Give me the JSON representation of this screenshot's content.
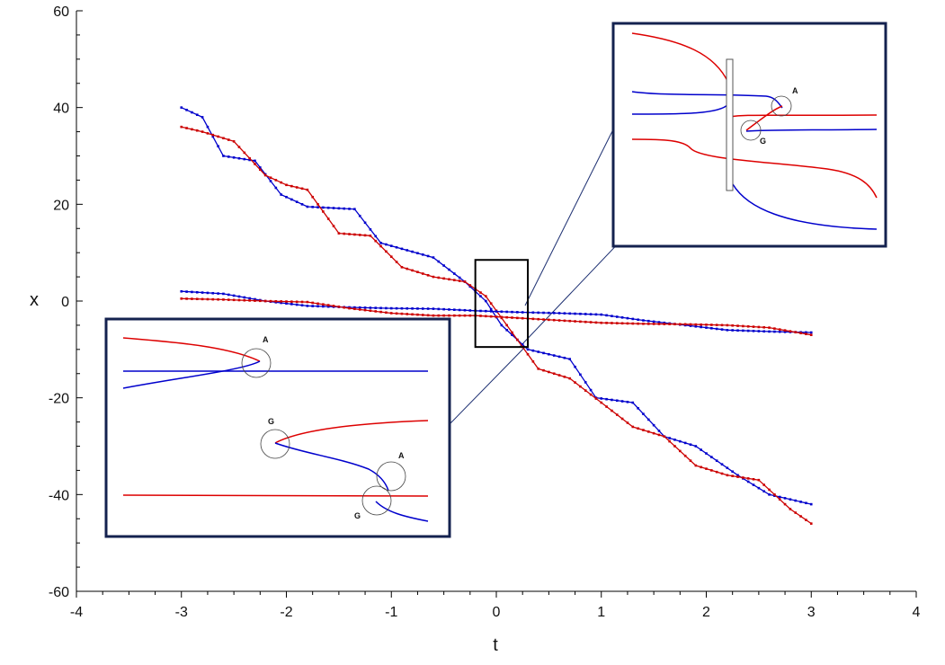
{
  "chart_data": {
    "type": "line",
    "xlabel": "t",
    "ylabel": "x",
    "xlim": [
      -4,
      4
    ],
    "ylim": [
      -60,
      60
    ],
    "xticks": [
      -4,
      -3,
      -2,
      -1,
      0,
      1,
      2,
      3,
      4
    ],
    "yticks": [
      60,
      40,
      20,
      0,
      -20,
      -40,
      -60
    ],
    "x_minor_step": 0.25,
    "y_minor_step": 5,
    "markers": true,
    "series": [
      {
        "color": "#0000cc",
        "x": [
          -3,
          -2.8,
          -2.6,
          -2.3,
          -2.05,
          -1.8,
          -1.35,
          -1.1,
          -0.6,
          -0.3,
          -0.1,
          0.05,
          0.3,
          0.7,
          0.95,
          1.3,
          1.6,
          1.9,
          2.3,
          2.6,
          3.0
        ],
        "y": [
          40,
          38,
          30,
          29,
          22,
          19.5,
          19,
          12,
          9,
          4,
          0,
          -5,
          -10,
          -12,
          -20,
          -21,
          -28,
          -30,
          -36,
          -40,
          -42
        ]
      },
      {
        "color": "#cc0000",
        "x": [
          -3,
          -2.8,
          -2.5,
          -2.2,
          -2.0,
          -1.8,
          -1.5,
          -1.2,
          -0.9,
          -0.6,
          -0.3,
          -0.1,
          0.1,
          0.4,
          0.7,
          1.0,
          1.3,
          1.6,
          1.9,
          2.2,
          2.5,
          2.8,
          3.0
        ],
        "y": [
          36,
          35,
          33,
          26,
          24,
          23,
          14,
          13.5,
          7,
          5,
          4,
          1,
          -5,
          -14,
          -16,
          -21,
          -26,
          -28,
          -34,
          -36,
          -37,
          -43,
          -46
        ]
      },
      {
        "color": "#0000cc",
        "x": [
          -3,
          -2.6,
          -2.2,
          -1.8,
          -1.4,
          -1.0,
          -0.6,
          -0.2,
          0.2,
          0.6,
          1.0,
          1.4,
          1.8,
          2.2,
          2.6,
          3.0
        ],
        "y": [
          2,
          1.5,
          0,
          -1,
          -1.3,
          -1.5,
          -1.6,
          -2,
          -2.3,
          -2.5,
          -2.8,
          -4,
          -5,
          -6,
          -6.3,
          -6.5
        ]
      },
      {
        "color": "#cc0000",
        "x": [
          -3,
          -2.6,
          -2.2,
          -1.8,
          -1.4,
          -1.0,
          -0.6,
          -0.2,
          0.2,
          0.6,
          1.0,
          1.4,
          1.8,
          2.2,
          2.6,
          3.0
        ],
        "y": [
          0.5,
          0.3,
          0,
          -0.2,
          -1.5,
          -2.5,
          -3,
          -3,
          -3.5,
          -4,
          -4.5,
          -4.7,
          -4.8,
          -5,
          -5.5,
          -7
        ]
      }
    ],
    "zoom_box": {
      "x": [
        -0.2,
        0.3
      ],
      "y": [
        -9.5,
        8.5
      ]
    },
    "insets": [
      {
        "name": "upper-inset",
        "labels": [
          "A",
          "G"
        ]
      },
      {
        "name": "lower-inset",
        "labels": [
          "A",
          "G",
          "A",
          "G"
        ]
      }
    ]
  }
}
